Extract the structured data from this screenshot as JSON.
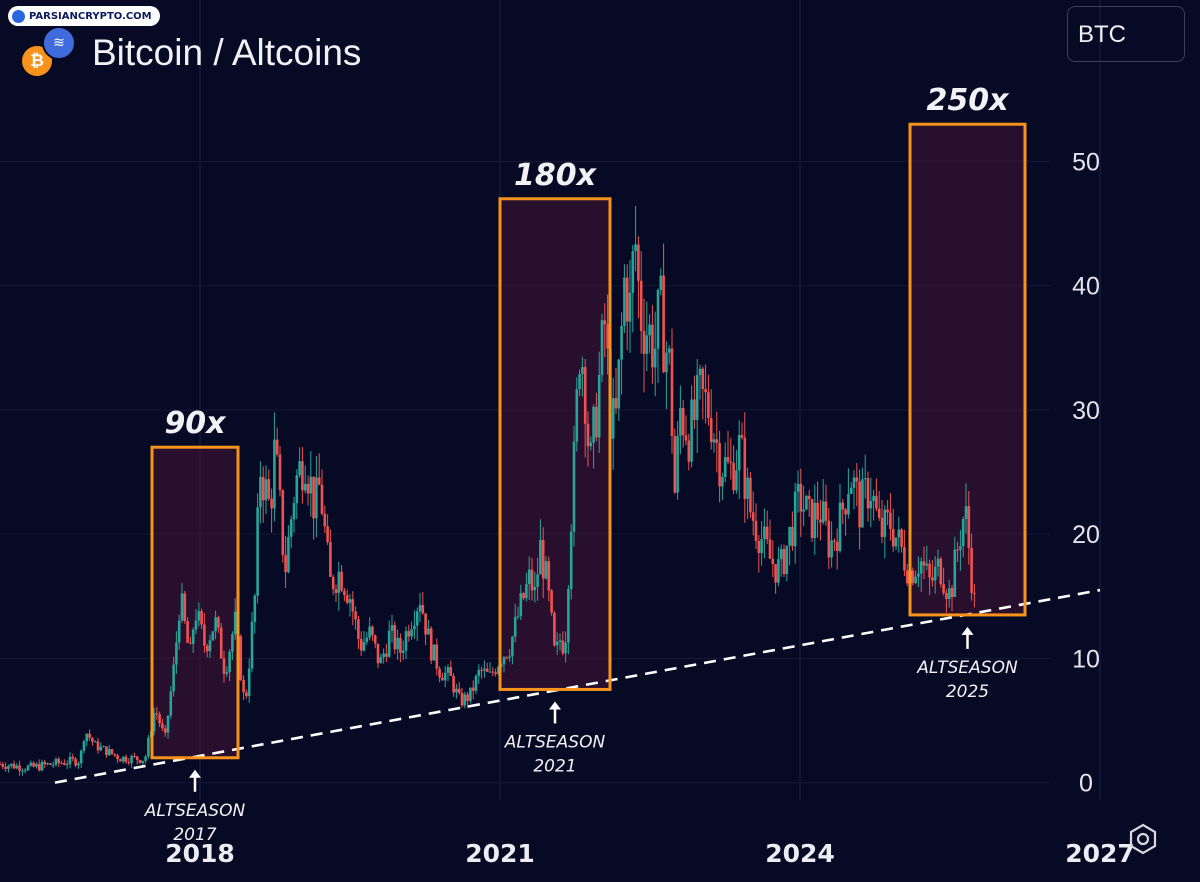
{
  "header": {
    "watermark": "PARSIANCRYPTO.COM",
    "title": "Bitcoin / Altcoins",
    "symbol": "BTC",
    "btc_icon": "bitcoin-icon",
    "alt_icon": "altcoin-icon",
    "settings_icon": "hexagon-settings-icon"
  },
  "colors": {
    "background": "#070a24",
    "up": "#26a69a",
    "down": "#ef5350",
    "box": "#f7931a",
    "box_fill": "rgba(70,20,55,0.55)",
    "text": "#f2f2f6"
  },
  "chart_data": {
    "type": "candlestick",
    "x_axis": {
      "ticks": [
        2018,
        2021,
        2024,
        2027
      ],
      "range": [
        2016.0,
        2028.0
      ]
    },
    "y_axis": {
      "ticks": [
        0,
        10,
        20,
        30,
        40,
        50
      ],
      "range": [
        -8,
        63
      ]
    },
    "series": [
      {
        "points": [
          [
            2016.0,
            1.5
          ],
          [
            2016.3,
            1.2
          ],
          [
            2016.6,
            1.6
          ],
          [
            2016.8,
            1.8
          ],
          [
            2016.85,
            4.2
          ],
          [
            2016.95,
            3.0
          ],
          [
            2017.2,
            2.0
          ],
          [
            2017.45,
            1.9
          ],
          [
            2017.55,
            6.0
          ],
          [
            2017.65,
            3.5
          ],
          [
            2017.75,
            10.0
          ],
          [
            2017.8,
            15.0
          ],
          [
            2017.9,
            10.0
          ],
          [
            2017.95,
            14.0
          ],
          [
            2018.05,
            11.0
          ],
          [
            2018.15,
            13.0
          ],
          [
            2018.25,
            9.0
          ],
          [
            2018.35,
            13.0
          ],
          [
            2018.45,
            6.0
          ],
          [
            2018.55,
            15.0
          ],
          [
            2018.6,
            25.5
          ],
          [
            2018.7,
            22.0
          ],
          [
            2018.75,
            27.0
          ],
          [
            2018.85,
            17.0
          ],
          [
            2018.95,
            24.0
          ],
          [
            2019.05,
            26.5
          ],
          [
            2019.15,
            22.0
          ],
          [
            2019.2,
            24.0
          ],
          [
            2019.3,
            16.0
          ],
          [
            2019.4,
            17.0
          ],
          [
            2019.5,
            15.0
          ],
          [
            2019.6,
            11.0
          ],
          [
            2019.7,
            12.0
          ],
          [
            2019.8,
            9.5
          ],
          [
            2019.9,
            12.0
          ],
          [
            2020.0,
            10.5
          ],
          [
            2020.1,
            13.0
          ],
          [
            2020.2,
            15.0
          ],
          [
            2020.3,
            11.0
          ],
          [
            2020.4,
            9.0
          ],
          [
            2020.5,
            8.5
          ],
          [
            2020.6,
            6.5
          ],
          [
            2020.7,
            7.0
          ],
          [
            2020.8,
            9.0
          ],
          [
            2020.9,
            8.5
          ],
          [
            2021.0,
            10.0
          ],
          [
            2021.1,
            11.0
          ],
          [
            2021.2,
            14.0
          ],
          [
            2021.3,
            16.5
          ],
          [
            2021.35,
            15.0
          ],
          [
            2021.4,
            19.0
          ],
          [
            2021.45,
            17.0
          ],
          [
            2021.5,
            14.0
          ],
          [
            2021.55,
            10.0
          ],
          [
            2021.6,
            11.5
          ],
          [
            2021.65,
            11.0
          ],
          [
            2021.7,
            20.0
          ],
          [
            2021.75,
            27.0
          ],
          [
            2021.8,
            36.0
          ],
          [
            2021.85,
            32.0
          ],
          [
            2021.9,
            25.0
          ],
          [
            2021.95,
            29.0
          ],
          [
            2022.0,
            33.0
          ],
          [
            2022.05,
            37.0
          ],
          [
            2022.1,
            30.0
          ],
          [
            2022.15,
            28.0
          ],
          [
            2022.2,
            34.0
          ],
          [
            2022.25,
            41.0
          ],
          [
            2022.3,
            38.0
          ],
          [
            2022.35,
            44.0
          ],
          [
            2022.4,
            38.0
          ],
          [
            2022.45,
            37.0
          ],
          [
            2022.55,
            35.0
          ],
          [
            2022.6,
            38.0
          ],
          [
            2022.7,
            33.0
          ],
          [
            2022.75,
            23.0
          ],
          [
            2022.8,
            30.0
          ],
          [
            2022.9,
            28.0
          ],
          [
            2023.0,
            31.0
          ],
          [
            2023.1,
            30.0
          ],
          [
            2023.2,
            26.0
          ],
          [
            2023.3,
            25.0
          ],
          [
            2023.4,
            27.0
          ],
          [
            2023.5,
            22.0
          ],
          [
            2023.6,
            20.0
          ],
          [
            2023.7,
            18.0
          ],
          [
            2023.8,
            17.0
          ],
          [
            2023.9,
            20.0
          ],
          [
            2024.0,
            23.0
          ],
          [
            2024.1,
            21.0
          ],
          [
            2024.2,
            22.0
          ],
          [
            2024.3,
            19.0
          ],
          [
            2024.4,
            21.0
          ],
          [
            2024.5,
            25.0
          ],
          [
            2024.6,
            22.0
          ],
          [
            2024.7,
            24.0
          ],
          [
            2024.8,
            20.0
          ],
          [
            2024.9,
            21.0
          ],
          [
            2025.0,
            19.0
          ],
          [
            2025.1,
            17.0
          ],
          [
            2025.2,
            18.0
          ],
          [
            2025.3,
            16.0
          ],
          [
            2025.4,
            17.5
          ],
          [
            2025.5,
            15.0
          ],
          [
            2025.6,
            20.0
          ],
          [
            2025.65,
            22.0
          ],
          [
            2025.7,
            18.0
          ],
          [
            2025.75,
            14.0
          ]
        ]
      }
    ],
    "trendline": {
      "style": "dashed",
      "points": [
        [
          2016.55,
          0
        ],
        [
          2027.0,
          15.5
        ]
      ]
    },
    "altseason_boxes": [
      {
        "label": "90x",
        "caption_line1": "ALTSEASON",
        "caption_line2": "2017",
        "x_range": [
          2017.52,
          2018.38
        ],
        "y_range": [
          2.0,
          27.0
        ]
      },
      {
        "label": "180x",
        "caption_line1": "ALTSEASON",
        "caption_line2": "2021",
        "x_range": [
          2021.0,
          2022.1
        ],
        "y_range": [
          7.5,
          47.0
        ]
      },
      {
        "label": "250x",
        "caption_line1": "ALTSEASON",
        "caption_line2": "2025",
        "x_range": [
          2025.1,
          2026.25
        ],
        "y_range": [
          13.5,
          53.0
        ]
      }
    ]
  }
}
